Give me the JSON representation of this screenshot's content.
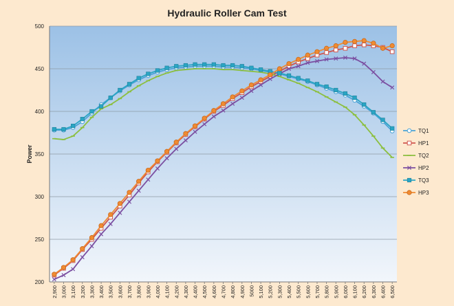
{
  "colors": {
    "background": "#fde9cf",
    "plot_top": "#9cc1e6",
    "plot_bottom": "#f2f6fb",
    "grid": "#8e9aa6"
  },
  "chart_data": {
    "type": "line",
    "title": "Hydraulic Roller Cam Test",
    "xlabel": "",
    "ylabel": "Power",
    "ylim": [
      200,
      500
    ],
    "yticks": [
      200,
      250,
      300,
      350,
      400,
      450,
      500
    ],
    "grid": true,
    "legend_position": "right",
    "categories": [
      "2,900",
      "3,000",
      "3,100",
      "3,200",
      "3,300",
      "3,400",
      "3,500",
      "3,600",
      "3,700",
      "3,800",
      "3,900",
      "4,000",
      "4,100",
      "4,200",
      "4,300",
      "4,400",
      "4,500",
      "4,600",
      "4,700",
      "4,800",
      "4,900",
      "5000",
      "5,100",
      "5,200",
      "5,300",
      "5,400",
      "5,500",
      "5,600",
      "5,700",
      "5,800",
      "5,900",
      "6,000",
      "6,100",
      "6,200",
      "6,300",
      "6,400",
      "6,500"
    ],
    "series": [
      {
        "name": "TQ1",
        "color": "#4aa3d6",
        "marker": "circle-open",
        "values": [
          378,
          378,
          381,
          388,
          398,
          408,
          416,
          424,
          431,
          437,
          442,
          446,
          449,
          451,
          452,
          453,
          453,
          453,
          452,
          452,
          451,
          450,
          448,
          446,
          444,
          441,
          438,
          435,
          431,
          427,
          423,
          419,
          413,
          406,
          398,
          388,
          377
        ]
      },
      {
        "name": "HP1",
        "color": "#d0554d",
        "marker": "square-open",
        "values": [
          208,
          216,
          225,
          238,
          250,
          263,
          276,
          289,
          302,
          316,
          329,
          341,
          352,
          363,
          373,
          382,
          391,
          400,
          407,
          415,
          422,
          429,
          435,
          441,
          447,
          453,
          458,
          462,
          466,
          469,
          472,
          474,
          477,
          478,
          477,
          475,
          470
        ]
      },
      {
        "name": "TQ2",
        "color": "#8cbf3f",
        "marker": "dash",
        "values": [
          368,
          367,
          371,
          381,
          393,
          403,
          408,
          415,
          423,
          430,
          436,
          441,
          445,
          448,
          449,
          450,
          450,
          450,
          449,
          449,
          448,
          447,
          446,
          444,
          441,
          437,
          433,
          428,
          423,
          417,
          411,
          405,
          396,
          384,
          371,
          357,
          346
        ]
      },
      {
        "name": "HP2",
        "color": "#7b4fa1",
        "marker": "x",
        "values": [
          203,
          208,
          215,
          229,
          242,
          256,
          268,
          281,
          294,
          307,
          320,
          333,
          345,
          356,
          366,
          376,
          385,
          394,
          401,
          409,
          416,
          424,
          431,
          438,
          444,
          450,
          453,
          457,
          459,
          461,
          462,
          463,
          462,
          456,
          446,
          435,
          428
        ]
      },
      {
        "name": "TQ3",
        "color": "#2aa5c4",
        "marker": "square-filled",
        "values": [
          379,
          379,
          383,
          391,
          400,
          406,
          416,
          425,
          432,
          439,
          444,
          448,
          451,
          453,
          454,
          455,
          455,
          455,
          454,
          454,
          453,
          451,
          449,
          447,
          445,
          442,
          439,
          436,
          432,
          429,
          425,
          421,
          416,
          408,
          399,
          390,
          380
        ]
      },
      {
        "name": "HP3",
        "color": "#f08b32",
        "marker": "circle-filled",
        "values": [
          209,
          217,
          226,
          239,
          252,
          266,
          279,
          292,
          305,
          318,
          331,
          342,
          353,
          364,
          374,
          383,
          392,
          401,
          409,
          417,
          424,
          431,
          437,
          443,
          450,
          456,
          461,
          466,
          470,
          474,
          477,
          481,
          482,
          483,
          480,
          474,
          477
        ]
      }
    ]
  }
}
